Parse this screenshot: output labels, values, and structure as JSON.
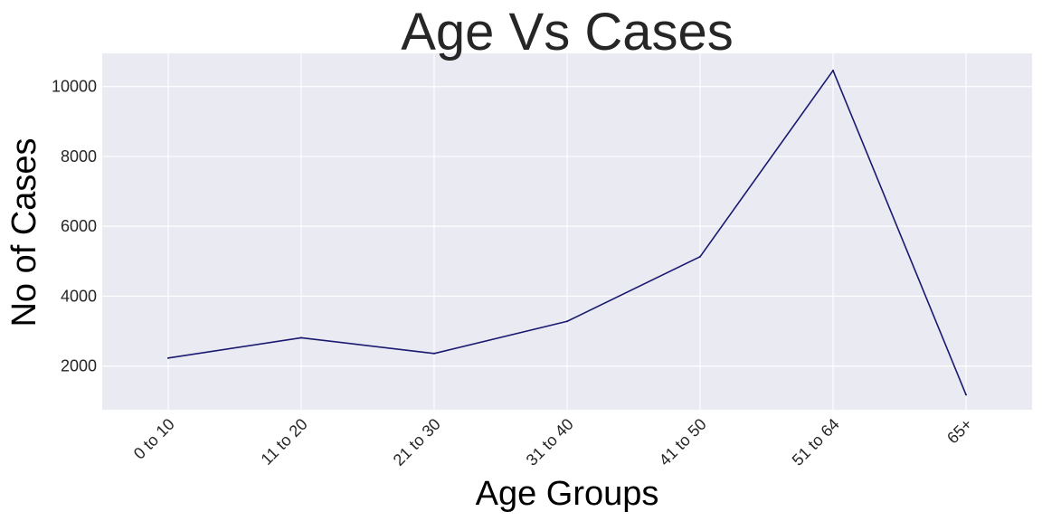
{
  "chart_data": {
    "type": "line",
    "title": "Age Vs Cases",
    "xlabel": "Age Groups",
    "ylabel": "No of Cases",
    "categories": [
      "0 to 10",
      "11 to 20",
      "21 to 30",
      "31 to 40",
      "41 to 50",
      "51 to 64",
      "65+"
    ],
    "series": [
      {
        "values": [
          2230,
          2810,
          2360,
          3280,
          5130,
          10460,
          1180
        ]
      }
    ],
    "yticks": [
      2000,
      4000,
      6000,
      8000,
      10000
    ],
    "ylim": [
      750,
      10950
    ],
    "grid": true,
    "colors": {
      "line": "#191970",
      "plot_bg": "#eaeaf2",
      "grid": "#ffffff"
    }
  }
}
